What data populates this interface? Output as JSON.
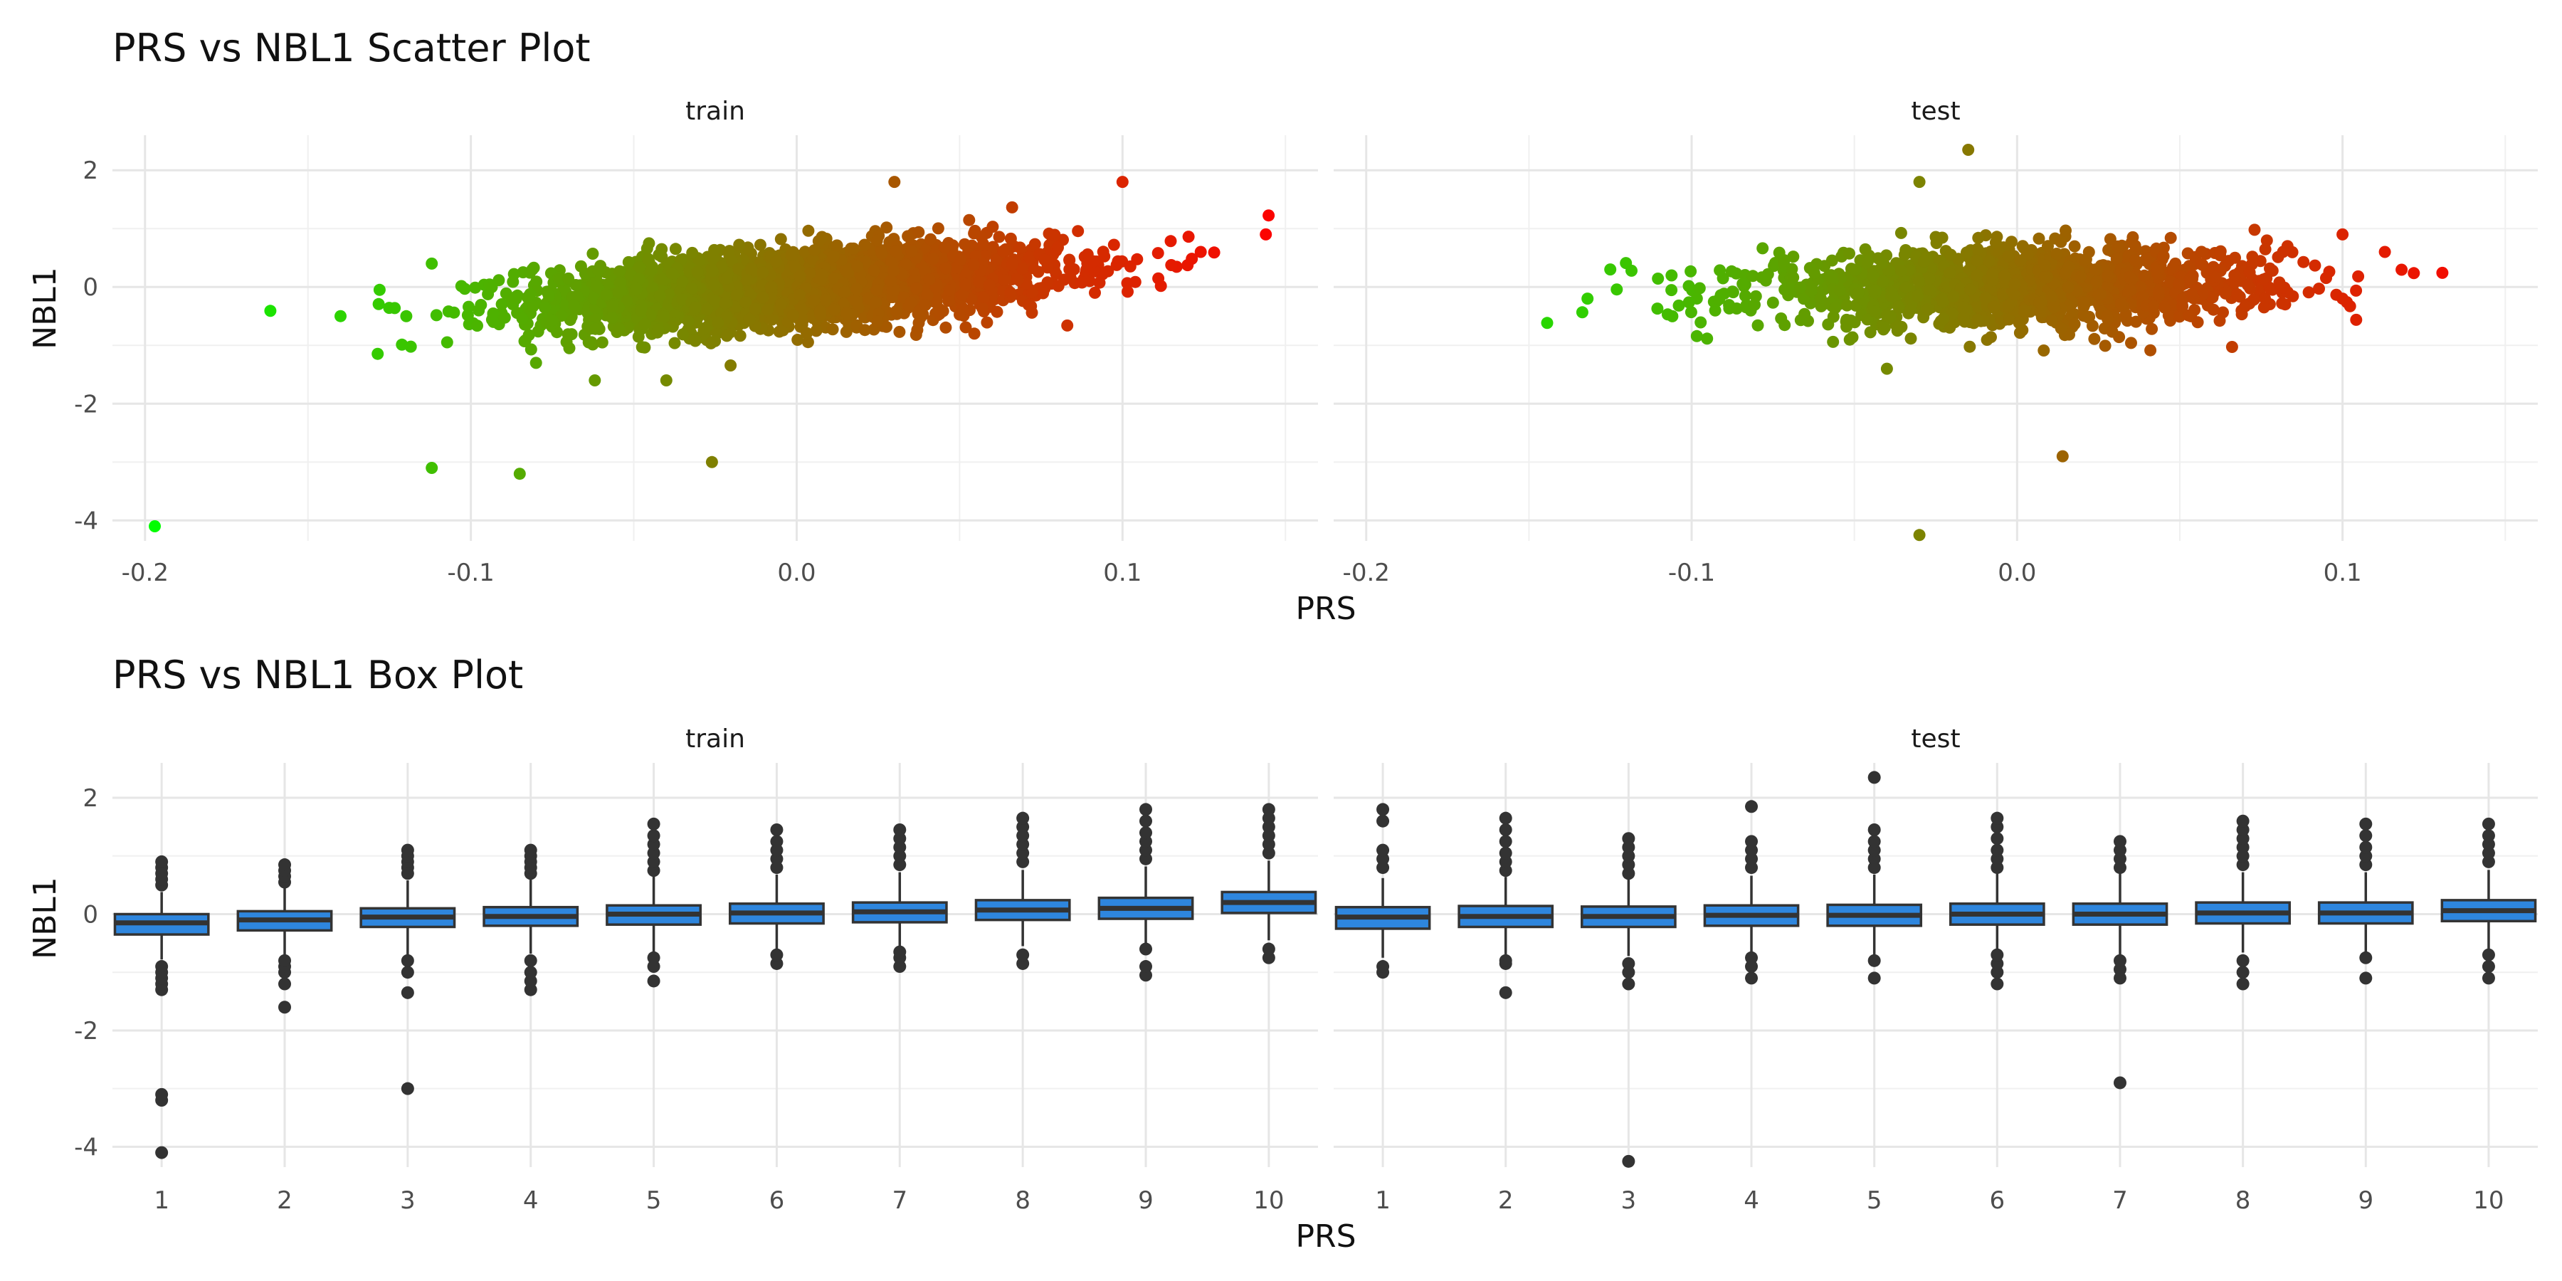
{
  "chart_data": [
    {
      "type": "scatter",
      "title": "PRS vs NBL1 Scatter Plot",
      "xlabel": "PRS",
      "ylabel": "NBL1",
      "facets": [
        "train",
        "test"
      ],
      "xlim": [
        -0.21,
        0.16
      ],
      "ylim": [
        -4.35,
        2.6
      ],
      "xticks": [
        -0.2,
        -0.1,
        0.0,
        0.1
      ],
      "xtick_labels": [
        "-0.2",
        "-0.1",
        "0.0",
        "0.1"
      ],
      "yticks": [
        -4,
        -2,
        0,
        2
      ],
      "ytick_labels": [
        "-4",
        "-2",
        "0",
        "2"
      ],
      "color_scale": {
        "low": "#00ff00",
        "high": "#ff0000",
        "low_value": -0.2,
        "high_value": 0.15
      },
      "grid": true,
      "point_clouds": [
        {
          "facet": "train",
          "n": 2600,
          "x_mean": 0.0,
          "x_sd": 0.04,
          "slope": 3.5,
          "y_sd": 0.33
        },
        {
          "facet": "test",
          "n": 1500,
          "x_mean": 0.0,
          "x_sd": 0.04,
          "slope": 1.0,
          "y_sd": 0.32
        }
      ],
      "points": [
        {
          "facet": "train",
          "x": -0.197,
          "y": -4.1
        },
        {
          "facet": "train",
          "x": -0.112,
          "y": -3.1
        },
        {
          "facet": "train",
          "x": -0.085,
          "y": -3.2
        },
        {
          "facet": "train",
          "x": -0.026,
          "y": -3.0
        },
        {
          "facet": "train",
          "x": -0.14,
          "y": -0.5
        },
        {
          "facet": "train",
          "x": -0.128,
          "y": -0.05
        },
        {
          "facet": "train",
          "x": -0.112,
          "y": 0.4
        },
        {
          "facet": "train",
          "x": 0.144,
          "y": 0.9
        },
        {
          "facet": "train",
          "x": 0.124,
          "y": 0.6
        },
        {
          "facet": "train",
          "x": 0.1,
          "y": 1.8
        },
        {
          "facet": "train",
          "x": 0.03,
          "y": 1.8
        },
        {
          "facet": "train",
          "x": -0.04,
          "y": -1.6
        },
        {
          "facet": "train",
          "x": -0.08,
          "y": -1.3
        },
        {
          "facet": "test",
          "x": -0.03,
          "y": -4.25
        },
        {
          "facet": "test",
          "x": 0.014,
          "y": -2.9
        },
        {
          "facet": "test",
          "x": -0.015,
          "y": 2.35
        },
        {
          "facet": "test",
          "x": 0.113,
          "y": 0.6
        },
        {
          "facet": "test",
          "x": 0.1,
          "y": 0.9
        },
        {
          "facet": "test",
          "x": -0.132,
          "y": -0.2
        },
        {
          "facet": "test",
          "x": -0.125,
          "y": 0.3
        },
        {
          "facet": "test",
          "x": -0.03,
          "y": 1.8
        },
        {
          "facet": "test",
          "x": -0.04,
          "y": -1.4
        },
        {
          "facet": "test",
          "x": 0.1,
          "y": -0.2
        }
      ]
    },
    {
      "type": "box",
      "title": "PRS vs NBL1 Box Plot",
      "xlabel": "PRS",
      "ylabel": "NBL1",
      "facets": [
        "train",
        "test"
      ],
      "categories": [
        "1",
        "2",
        "3",
        "4",
        "5",
        "6",
        "7",
        "8",
        "9",
        "10"
      ],
      "ylim": [
        -4.35,
        2.6
      ],
      "yticks": [
        -4,
        -2,
        0,
        2
      ],
      "ytick_labels": [
        "-4",
        "-2",
        "0",
        "2"
      ],
      "box_fill": "#2e86de",
      "grid": true,
      "series": [
        {
          "facet": "train",
          "boxes": [
            {
              "q1": -0.35,
              "median": -0.15,
              "q3": 0.0,
              "lower": -0.78,
              "upper": 0.38,
              "outliers": [
                -4.1,
                -3.2,
                -3.1,
                -1.3,
                -1.2,
                -1.1,
                -1.0,
                -0.9,
                0.5,
                0.6,
                0.7,
                0.8,
                0.9
              ]
            },
            {
              "q1": -0.28,
              "median": -0.1,
              "q3": 0.05,
              "lower": -0.75,
              "upper": 0.48,
              "outliers": [
                -1.6,
                -1.2,
                -1.0,
                -0.9,
                -0.8,
                0.55,
                0.65,
                0.75,
                0.85
              ]
            },
            {
              "q1": -0.22,
              "median": -0.05,
              "q3": 0.1,
              "lower": -0.72,
              "upper": 0.58,
              "outliers": [
                -3.0,
                -1.35,
                -1.0,
                -0.8,
                0.7,
                0.8,
                0.9,
                1.0,
                1.1
              ]
            },
            {
              "q1": -0.2,
              "median": -0.04,
              "q3": 0.12,
              "lower": -0.68,
              "upper": 0.62,
              "outliers": [
                -1.3,
                -1.15,
                -1.0,
                -0.8,
                0.7,
                0.8,
                0.9,
                1.0,
                1.1
              ]
            },
            {
              "q1": -0.18,
              "median": 0.0,
              "q3": 0.15,
              "lower": -0.65,
              "upper": 0.65,
              "outliers": [
                -1.15,
                -0.9,
                -0.75,
                0.75,
                0.9,
                1.05,
                1.2,
                1.35,
                1.55
              ]
            },
            {
              "q1": -0.16,
              "median": 0.02,
              "q3": 0.18,
              "lower": -0.62,
              "upper": 0.68,
              "outliers": [
                -0.85,
                -0.7,
                0.8,
                0.95,
                1.1,
                1.25,
                1.45
              ]
            },
            {
              "q1": -0.14,
              "median": 0.04,
              "q3": 0.2,
              "lower": -0.58,
              "upper": 0.72,
              "outliers": [
                -0.9,
                -0.75,
                -0.65,
                0.85,
                1.0,
                1.15,
                1.3,
                1.45
              ]
            },
            {
              "q1": -0.1,
              "median": 0.07,
              "q3": 0.24,
              "lower": -0.55,
              "upper": 0.76,
              "outliers": [
                -0.85,
                -0.7,
                0.9,
                1.05,
                1.2,
                1.35,
                1.5,
                1.65
              ]
            },
            {
              "q1": -0.08,
              "median": 0.1,
              "q3": 0.28,
              "lower": -0.5,
              "upper": 0.82,
              "outliers": [
                -1.05,
                -0.9,
                -0.6,
                0.95,
                1.1,
                1.25,
                1.4,
                1.6,
                1.8
              ]
            },
            {
              "q1": 0.02,
              "median": 0.2,
              "q3": 0.38,
              "lower": -0.45,
              "upper": 0.92,
              "outliers": [
                -0.75,
                -0.6,
                1.05,
                1.2,
                1.35,
                1.5,
                1.65,
                1.8
              ]
            }
          ]
        },
        {
          "facet": "test",
          "boxes": [
            {
              "q1": -0.25,
              "median": -0.05,
              "q3": 0.12,
              "lower": -0.75,
              "upper": 0.62,
              "outliers": [
                -1.0,
                -0.9,
                0.8,
                0.95,
                1.1,
                1.6,
                1.8
              ]
            },
            {
              "q1": -0.22,
              "median": -0.04,
              "q3": 0.14,
              "lower": -0.72,
              "upper": 0.64,
              "outliers": [
                -1.35,
                -0.85,
                -0.8,
                0.75,
                0.9,
                1.05,
                1.25,
                1.45,
                1.65
              ]
            },
            {
              "q1": -0.22,
              "median": -0.04,
              "q3": 0.13,
              "lower": -0.72,
              "upper": 0.6,
              "outliers": [
                -4.25,
                -1.2,
                -1.0,
                -0.85,
                0.7,
                0.85,
                1.0,
                1.15,
                1.3
              ]
            },
            {
              "q1": -0.2,
              "median": -0.02,
              "q3": 0.15,
              "lower": -0.7,
              "upper": 0.66,
              "outliers": [
                -1.1,
                -0.9,
                -0.75,
                0.8,
                0.95,
                1.1,
                1.25,
                1.85
              ]
            },
            {
              "q1": -0.2,
              "median": -0.02,
              "q3": 0.16,
              "lower": -0.7,
              "upper": 0.68,
              "outliers": [
                -1.1,
                -0.8,
                0.8,
                0.95,
                1.1,
                1.25,
                1.45,
                2.35
              ]
            },
            {
              "q1": -0.18,
              "median": 0.0,
              "q3": 0.18,
              "lower": -0.68,
              "upper": 0.7,
              "outliers": [
                -1.2,
                -1.0,
                -0.85,
                -0.7,
                0.8,
                0.95,
                1.1,
                1.3,
                1.5,
                1.65
              ]
            },
            {
              "q1": -0.18,
              "median": 0.0,
              "q3": 0.18,
              "lower": -0.7,
              "upper": 0.7,
              "outliers": [
                -2.9,
                -1.1,
                -0.95,
                -0.8,
                0.8,
                0.95,
                1.1,
                1.25
              ]
            },
            {
              "q1": -0.16,
              "median": 0.02,
              "q3": 0.2,
              "lower": -0.66,
              "upper": 0.72,
              "outliers": [
                -1.2,
                -1.0,
                -0.8,
                0.85,
                1.0,
                1.15,
                1.3,
                1.45,
                1.6
              ]
            },
            {
              "q1": -0.16,
              "median": 0.02,
              "q3": 0.2,
              "lower": -0.66,
              "upper": 0.72,
              "outliers": [
                -1.1,
                -0.75,
                0.85,
                1.0,
                1.15,
                1.35,
                1.55
              ]
            },
            {
              "q1": -0.12,
              "median": 0.06,
              "q3": 0.24,
              "lower": -0.62,
              "upper": 0.76,
              "outliers": [
                -1.1,
                -0.9,
                -0.7,
                0.9,
                1.05,
                1.2,
                1.35,
                1.55
              ]
            }
          ]
        }
      ]
    }
  ]
}
